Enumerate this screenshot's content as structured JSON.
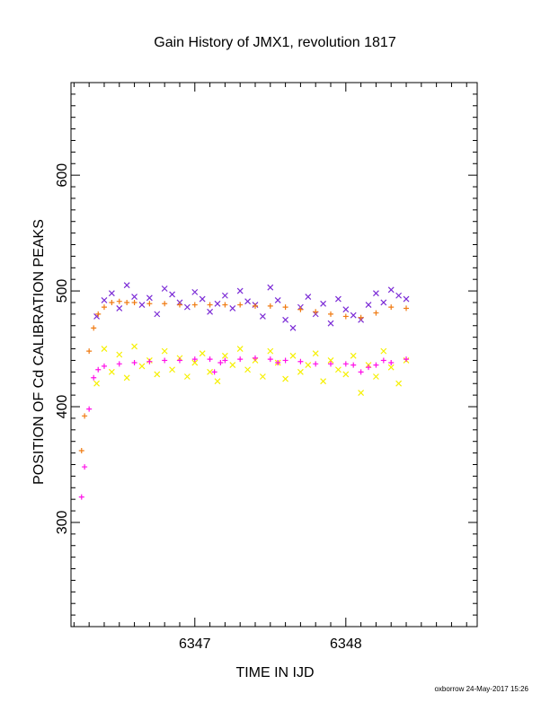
{
  "chart_data": {
    "type": "scatter",
    "title": "Gain History of JMX1, revolution 1817",
    "xlabel": "TIME IN IJD",
    "ylabel": "POSITION OF Cd CALIBRATION PEAKS",
    "xlim": [
      6346.18,
      6348.87
    ],
    "ylim": [
      210,
      680
    ],
    "x_ticks": [
      6347,
      6348
    ],
    "y_ticks": [
      300,
      400,
      500,
      600
    ],
    "grid": false,
    "legend": "none",
    "colors": {
      "purple": "#7b2bd6",
      "orange": "#f07b12",
      "yellow": "#f6f000",
      "magenta": "#ff10e8"
    },
    "series": [
      {
        "marker": "x",
        "color": "purple",
        "x": [
          6346.35,
          6346.4,
          6346.45,
          6346.5,
          6346.55,
          6346.6,
          6346.65,
          6346.7,
          6346.75,
          6346.8,
          6346.85,
          6346.9,
          6346.95,
          6347.0,
          6347.05,
          6347.1,
          6347.15,
          6347.2,
          6347.25,
          6347.3,
          6347.35,
          6347.4,
          6347.45,
          6347.5,
          6347.55,
          6347.6,
          6347.65,
          6347.7,
          6347.75,
          6347.8,
          6347.85,
          6347.9,
          6347.95,
          6348.0,
          6348.05,
          6348.1,
          6348.15,
          6348.2,
          6348.25,
          6348.3,
          6348.35,
          6348.4
        ],
        "y": [
          478,
          492,
          498,
          485,
          505,
          495,
          488,
          494,
          480,
          502,
          497,
          490,
          486,
          499,
          493,
          482,
          489,
          496,
          485,
          500,
          491,
          488,
          478,
          503,
          492,
          475,
          468,
          486,
          495,
          480,
          489,
          472,
          493,
          484,
          479,
          475,
          488,
          498,
          490,
          501,
          496,
          493
        ]
      },
      {
        "marker": "+",
        "color": "orange",
        "x": [
          6346.25,
          6346.27,
          6346.3,
          6346.33,
          6346.36,
          6346.4,
          6346.45,
          6346.5,
          6346.55,
          6346.6,
          6346.7,
          6346.8,
          6346.9,
          6347.0,
          6347.1,
          6347.2,
          6347.3,
          6347.4,
          6347.5,
          6347.6,
          6347.7,
          6347.8,
          6347.9,
          6348.0,
          6348.1,
          6348.2,
          6348.3,
          6348.4
        ],
        "y": [
          362,
          392,
          448,
          468,
          480,
          486,
          490,
          491,
          490,
          490,
          489,
          489,
          488,
          488,
          488,
          488,
          488,
          487,
          487,
          486,
          484,
          482,
          480,
          478,
          477,
          481,
          486,
          485
        ]
      },
      {
        "marker": "x",
        "color": "yellow",
        "x": [
          6346.35,
          6346.4,
          6346.45,
          6346.5,
          6346.55,
          6346.6,
          6346.65,
          6346.7,
          6346.75,
          6346.8,
          6346.85,
          6346.9,
          6346.95,
          6347.0,
          6347.05,
          6347.1,
          6347.15,
          6347.2,
          6347.25,
          6347.3,
          6347.35,
          6347.4,
          6347.45,
          6347.5,
          6347.55,
          6347.6,
          6347.65,
          6347.7,
          6347.75,
          6347.8,
          6347.85,
          6347.9,
          6347.95,
          6348.0,
          6348.05,
          6348.1,
          6348.15,
          6348.2,
          6348.25,
          6348.3,
          6348.35,
          6348.4
        ],
        "y": [
          420,
          450,
          430,
          445,
          425,
          452,
          435,
          440,
          428,
          448,
          432,
          442,
          426,
          438,
          446,
          430,
          422,
          444,
          436,
          450,
          432,
          440,
          426,
          448,
          438,
          424,
          444,
          430,
          436,
          446,
          422,
          440,
          432,
          428,
          444,
          412,
          436,
          426,
          448,
          434,
          420,
          440
        ]
      },
      {
        "marker": "+",
        "color": "magenta",
        "x": [
          6346.25,
          6346.27,
          6346.3,
          6346.33,
          6346.36,
          6346.4,
          6346.5,
          6346.6,
          6346.7,
          6346.8,
          6346.9,
          6347.0,
          6347.1,
          6347.13,
          6347.17,
          6347.2,
          6347.3,
          6347.4,
          6347.5,
          6347.55,
          6347.6,
          6347.7,
          6347.8,
          6347.9,
          6348.0,
          6348.05,
          6348.1,
          6348.15,
          6348.2,
          6348.25,
          6348.3,
          6348.4
        ],
        "y": [
          322,
          348,
          398,
          425,
          432,
          435,
          437,
          438,
          439,
          440,
          440,
          441,
          441,
          430,
          438,
          440,
          441,
          442,
          441,
          438,
          440,
          439,
          437,
          437,
          437,
          436,
          430,
          434,
          436,
          440,
          438,
          441
        ]
      }
    ]
  },
  "footer": "oxborrow 24-May-2017 15:26"
}
